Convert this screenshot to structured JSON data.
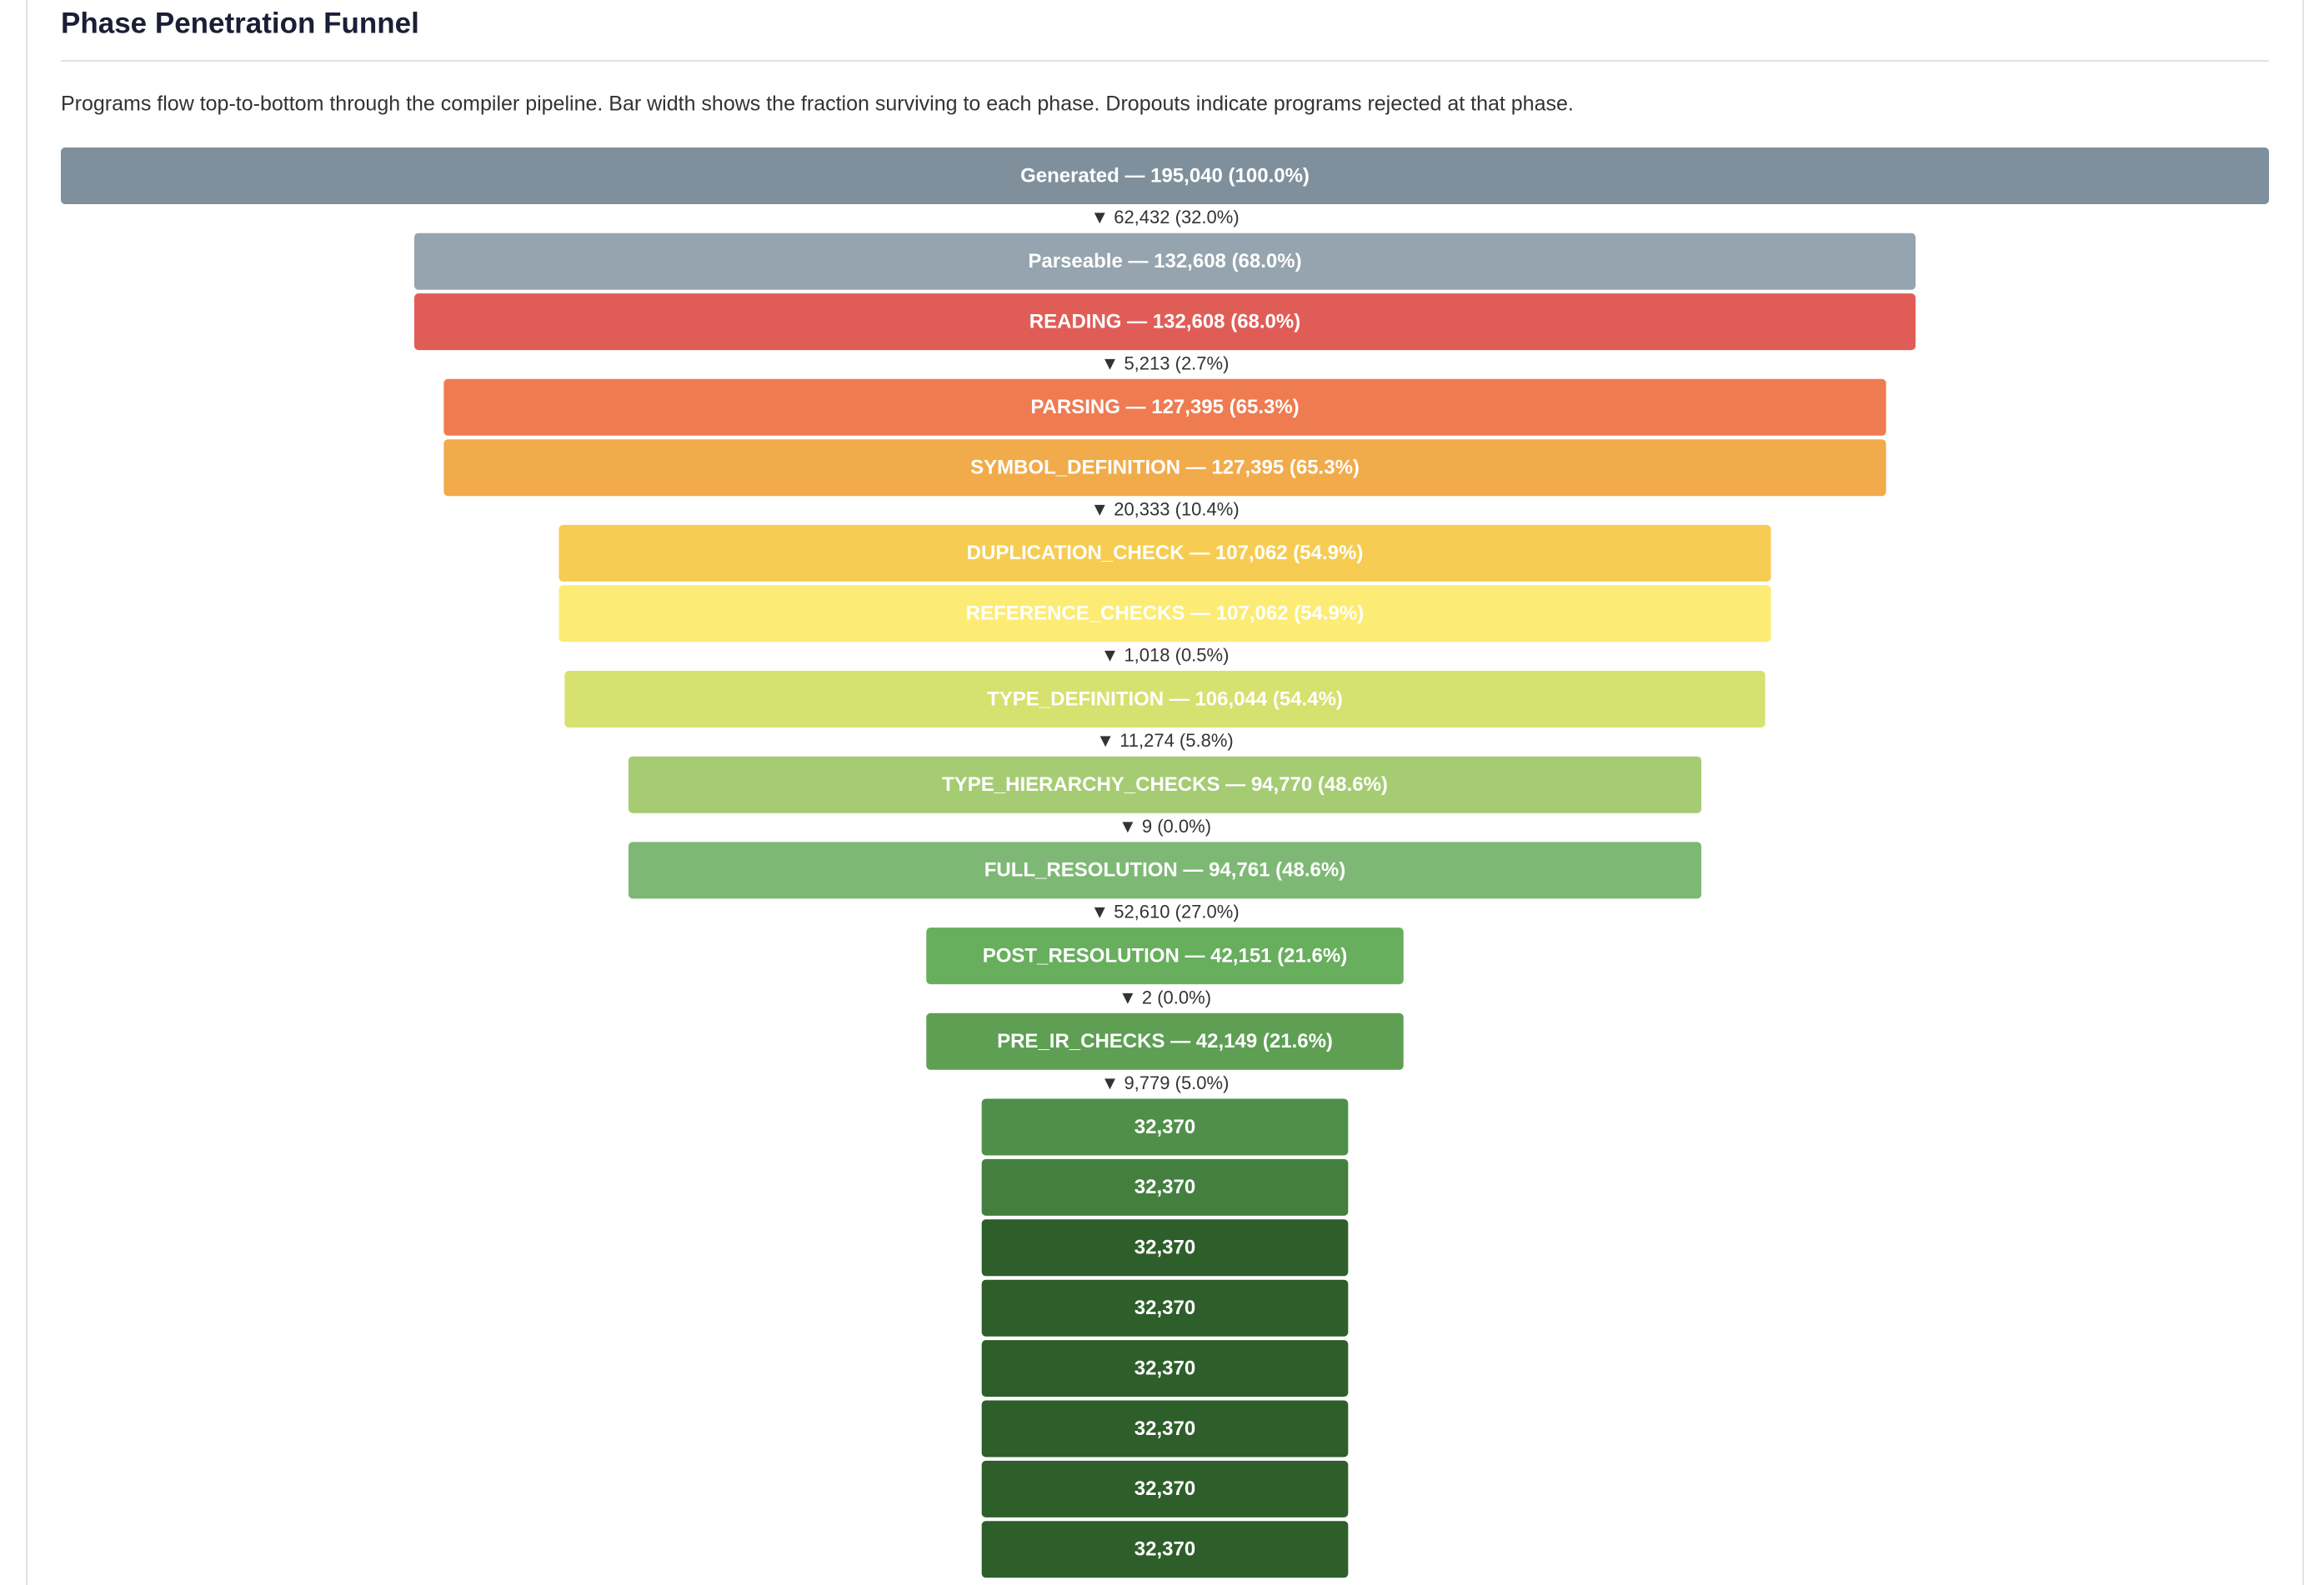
{
  "chart_data": {
    "type": "funnel",
    "title": "Phase Penetration Funnel",
    "subtitle": "Programs flow top-to-bottom through the compiler pipeline. Bar width shows the fraction surviving to each phase. Dropouts indicate programs rejected at that phase.",
    "labels": [
      "Generated — 195,040 (100.0%)",
      "Parseable — 132,608 (68.0%)",
      "READING — 132,608 (68.0%)",
      "PARSING — 127,395 (65.3%)",
      "SYMBOL_DEFINITION — 127,395 (65.3%)",
      "DUPLICATION_CHECK — 107,062 (54.9%)",
      "REFERENCE_CHECKS — 107,062 (54.9%)",
      "TYPE_DEFINITION — 106,044 (54.4%)",
      "TYPE_HIERARCHY_CHECKS — 94,770 (48.6%)",
      "FULL_RESOLUTION — 94,761 (48.6%)",
      "POST_RESOLUTION — 42,151 (21.6%)",
      "PRE_IR_CHECKS — 42,149 (21.6%)",
      "32,370",
      "32,370",
      "32,370",
      "32,370",
      "32,370",
      "32,370",
      "32,370",
      "32,370"
    ],
    "values": [
      195040,
      132608,
      132608,
      127395,
      127395,
      107062,
      107062,
      106044,
      94770,
      94761,
      42151,
      42149,
      32370,
      32370,
      32370,
      32370,
      32370,
      32370,
      32370,
      32370
    ],
    "colors": [
      "#7f909c",
      "#95a4ae",
      "#e05d57",
      "#ef7b51",
      "#f2ab4a",
      "#f6cd52",
      "#fcec75",
      "#d6e16f",
      "#a6cc73",
      "#7db974",
      "#67ae5d",
      "#5e9f54",
      "#4f8f49",
      "#447f40",
      "#2e5e2a",
      "#2e5e2a",
      "#2e5e2a",
      "#2e5e2a",
      "#2e5e2a",
      "#2e5e2a"
    ],
    "dropouts": [
      62432,
      null,
      5213,
      null,
      20333,
      null,
      1018,
      11274,
      9,
      52610,
      2,
      9779,
      null,
      null,
      null,
      null,
      null,
      null,
      null
    ],
    "dropout_labels": [
      "▼ 62,432 (32.0%)",
      null,
      "▼ 5,213 (2.7%)",
      null,
      "▼ 20,333 (10.4%)",
      null,
      "▼ 1,018 (0.5%)",
      "▼ 11,274 (5.8%)",
      "▼ 9 (0.0%)",
      "▼ 52,610 (27.0%)",
      "▼ 2 (0.0%)",
      "▼ 9,779 (5.0%)",
      null,
      null,
      null,
      null,
      null,
      null,
      null
    ]
  }
}
